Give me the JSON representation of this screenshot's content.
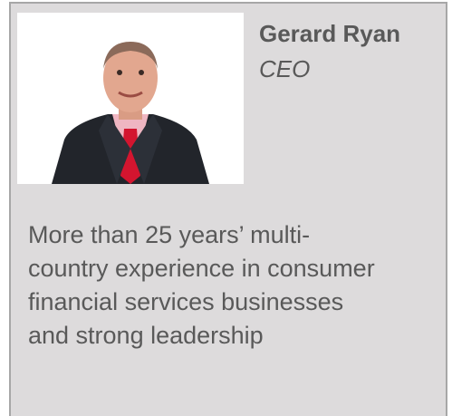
{
  "profile": {
    "name": "Gerard Ryan",
    "role": "CEO",
    "description_lines": [
      "More than 25 years’ multi-",
      "country experience in consumer",
      "financial services businesses",
      "and strong leadership"
    ]
  }
}
